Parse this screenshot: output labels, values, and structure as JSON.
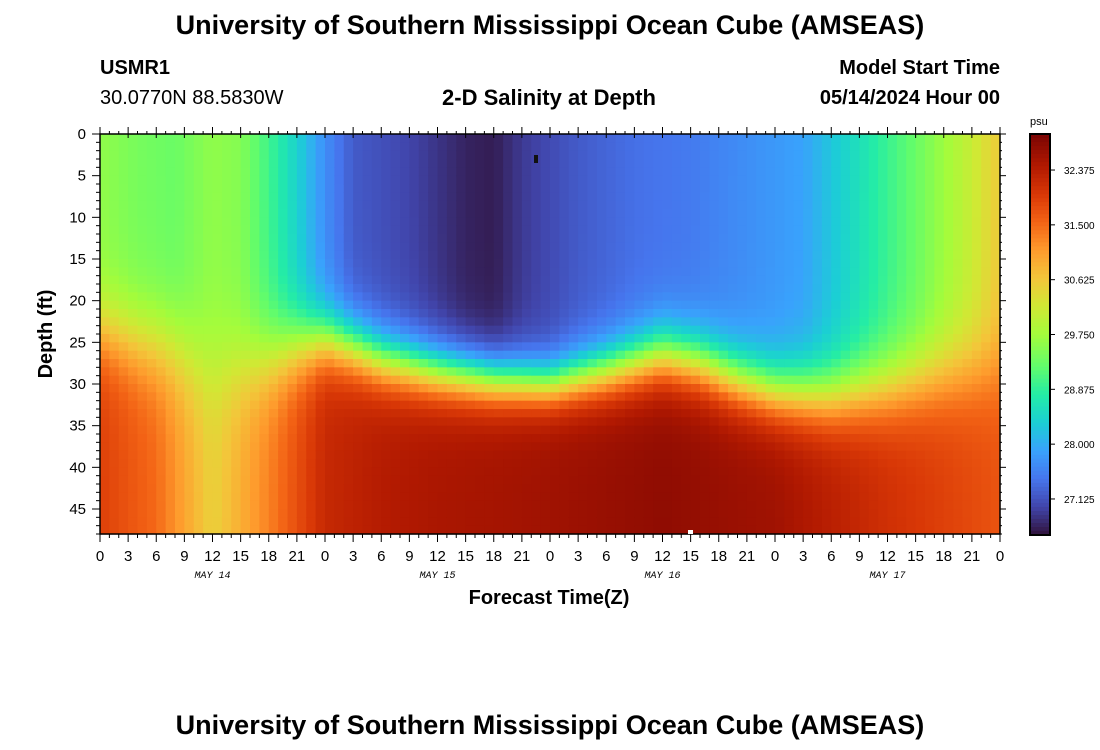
{
  "page": {
    "title": "University of Southern Mississippi Ocean Cube (AMSEAS)",
    "footer_title": "University of Southern Mississippi Ocean Cube (AMSEAS)",
    "station": "USMR1",
    "coords": "30.0770N  88.5830W",
    "subtitle": "2-D Salinity at Depth",
    "model_start_label": "Model Start Time",
    "model_start_value": "05/14/2024 Hour 00"
  },
  "chart_data": {
    "type": "heatmap",
    "title": "2-D Salinity at Depth",
    "xlabel": "Forecast Time(Z)",
    "ylabel": "Depth (ft)",
    "x_tick_labels": [
      "0",
      "3",
      "6",
      "9",
      "12",
      "15",
      "18",
      "21",
      "0",
      "3",
      "6",
      "9",
      "12",
      "15",
      "18",
      "21",
      "0",
      "3",
      "6",
      "9",
      "12",
      "15",
      "18",
      "21",
      "0",
      "3",
      "6",
      "9",
      "12",
      "15",
      "18",
      "21",
      "0"
    ],
    "day_labels": [
      "MAY 14",
      "MAY 15",
      "MAY 16",
      "MAY 17"
    ],
    "y_tick_labels": [
      "0",
      "5",
      "10",
      "15",
      "20",
      "25",
      "30",
      "35",
      "40",
      "45"
    ],
    "ylim": [
      0,
      48
    ],
    "xlim_hours": [
      0,
      96
    ],
    "colorbar": {
      "unit": "psu",
      "labels": [
        "32.375",
        "31.500",
        "30.625",
        "29.750",
        "28.875",
        "28.000",
        "27.125"
      ],
      "range": [
        26.55,
        32.95
      ],
      "colormap": "turbo"
    },
    "pycnocline_depth_ft": [
      [
        0,
        23.5
      ],
      [
        4,
        25
      ],
      [
        8,
        26
      ],
      [
        10,
        27.5
      ],
      [
        12,
        28.5
      ],
      [
        15,
        28
      ],
      [
        18,
        27
      ],
      [
        21,
        25.5
      ],
      [
        24,
        24.5
      ],
      [
        27,
        25.5
      ],
      [
        30,
        27
      ],
      [
        36,
        28.5
      ],
      [
        42,
        29.5
      ],
      [
        48,
        30
      ],
      [
        54,
        28.5
      ],
      [
        60,
        26.5
      ],
      [
        64,
        27.5
      ],
      [
        68,
        29.5
      ],
      [
        72,
        31
      ],
      [
        78,
        31.5
      ],
      [
        84,
        30.5
      ],
      [
        90,
        29
      ],
      [
        96,
        28
      ]
    ],
    "surface_salinity_psu": [
      [
        0,
        29.6
      ],
      [
        4,
        29.4
      ],
      [
        8,
        29.3
      ],
      [
        12,
        29.6
      ],
      [
        15,
        29.5
      ],
      [
        18,
        29.0
      ],
      [
        21,
        28.4
      ],
      [
        24,
        27.7
      ],
      [
        27,
        27.2
      ],
      [
        33,
        27.0
      ],
      [
        39,
        26.7
      ],
      [
        42,
        26.65
      ],
      [
        45,
        26.9
      ],
      [
        51,
        27.2
      ],
      [
        57,
        27.4
      ],
      [
        63,
        27.5
      ],
      [
        69,
        27.7
      ],
      [
        75,
        27.9
      ],
      [
        81,
        28.6
      ],
      [
        87,
        29.3
      ],
      [
        93,
        30.1
      ],
      [
        96,
        30.6
      ]
    ],
    "bottom_salinity_psu": [
      [
        0,
        31.9
      ],
      [
        6,
        31.5
      ],
      [
        12,
        30.5
      ],
      [
        18,
        31.3
      ],
      [
        24,
        32.2
      ],
      [
        30,
        32.4
      ],
      [
        36,
        32.5
      ],
      [
        48,
        32.6
      ],
      [
        60,
        32.75
      ],
      [
        72,
        32.6
      ],
      [
        84,
        32.1
      ],
      [
        96,
        31.7
      ]
    ],
    "transition_thickness_ft": [
      [
        0,
        6
      ],
      [
        12,
        8
      ],
      [
        24,
        5
      ],
      [
        48,
        4
      ],
      [
        60,
        5
      ],
      [
        72,
        5
      ],
      [
        84,
        6
      ],
      [
        96,
        7
      ]
    ]
  }
}
